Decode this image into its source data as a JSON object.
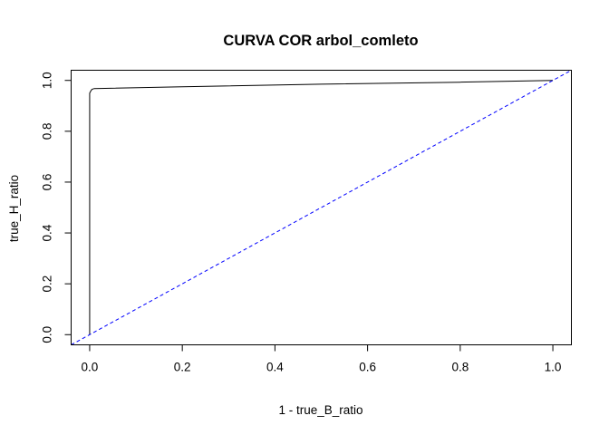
{
  "chart_data": {
    "type": "line",
    "title": "CURVA COR  arbol_comleto",
    "xlabel": "1 - true_B_ratio",
    "ylabel": "true_H_ratio",
    "xlim": [
      -0.04,
      1.04
    ],
    "ylim": [
      -0.04,
      1.04
    ],
    "x_ticks": [
      "0.0",
      "0.2",
      "0.4",
      "0.6",
      "0.8",
      "1.0"
    ],
    "y_ticks": [
      "0.0",
      "0.2",
      "0.4",
      "0.6",
      "0.8",
      "1.0"
    ],
    "grid": false,
    "series": [
      {
        "color": "#000000",
        "line_style": "solid",
        "x": [
          0.0,
          0.0,
          0.0,
          0.003,
          0.005,
          0.01,
          0.2,
          0.5,
          0.8,
          1.0
        ],
        "y": [
          0.0,
          0.93,
          0.95,
          0.96,
          0.965,
          0.968,
          0.975,
          0.985,
          0.993,
          1.0
        ]
      },
      {
        "color": "#0000ff",
        "line_style": "dashed",
        "x": [
          -0.04,
          1.04
        ],
        "y": [
          -0.04,
          1.04
        ]
      }
    ]
  }
}
